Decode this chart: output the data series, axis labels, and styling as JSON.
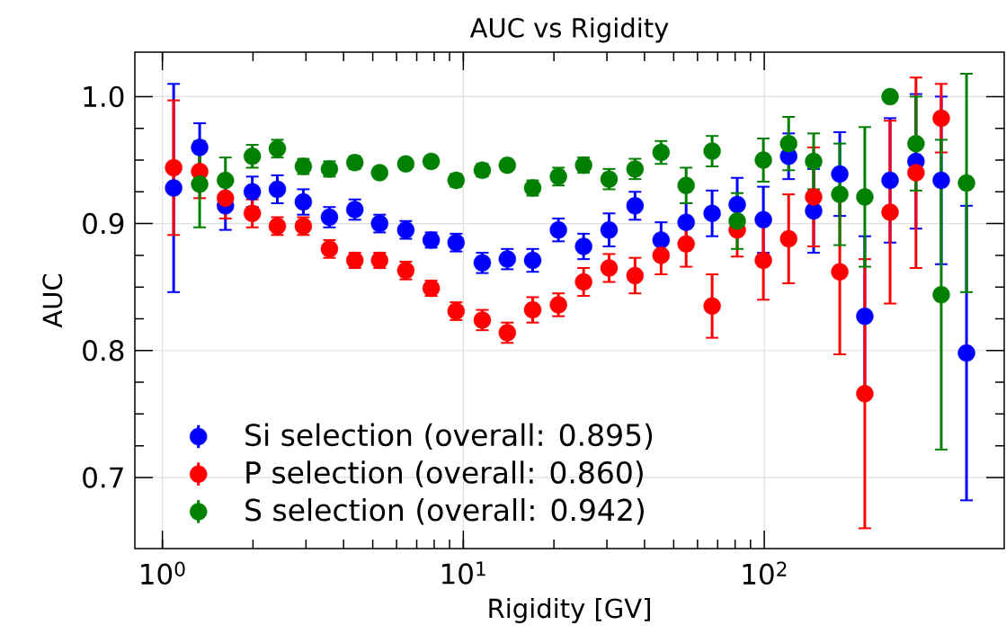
{
  "chart_data": {
    "type": "scatter",
    "title": "AUC vs Rigidity",
    "xlabel": "Rigidity [GV]",
    "ylabel": "AUC",
    "x": [
      1.09,
      1.33,
      1.62,
      1.99,
      2.41,
      2.94,
      3.59,
      4.36,
      5.27,
      6.44,
      7.82,
      9.46,
      11.56,
      14.0,
      17.0,
      20.7,
      25.1,
      30.5,
      37.2,
      45.4,
      55.0,
      67.1,
      81.3,
      99.3,
      120.5,
      145.9,
      178.2,
      215.8,
      261.8,
      319.2,
      387.3,
      469.9
    ],
    "series": [
      {
        "name": "Si selection (overall: 0.895)",
        "color": "#0000ff",
        "values": [
          0.928,
          0.96,
          0.914,
          0.925,
          0.927,
          0.917,
          0.905,
          0.911,
          0.9,
          0.895,
          0.887,
          0.885,
          0.869,
          0.872,
          0.871,
          0.895,
          0.882,
          0.895,
          0.914,
          0.887,
          0.901,
          0.908,
          0.915,
          0.903,
          0.953,
          0.91,
          0.939,
          0.827,
          0.934,
          0.949,
          0.934,
          0.798
        ],
        "errors": [
          0.082,
          0.019,
          0.019,
          0.012,
          0.011,
          0.01,
          0.008,
          0.008,
          0.007,
          0.007,
          0.006,
          0.007,
          0.008,
          0.008,
          0.009,
          0.009,
          0.01,
          0.013,
          0.011,
          0.014,
          0.015,
          0.018,
          0.021,
          0.026,
          0.018,
          0.033,
          0.033,
          0.063,
          0.049,
          0.053,
          0.066,
          0.116
        ]
      },
      {
        "name": "P selection (overall: 0.860)",
        "color": "#ff0000",
        "values": [
          0.944,
          0.941,
          0.92,
          0.908,
          0.898,
          0.898,
          0.88,
          0.871,
          0.871,
          0.863,
          0.849,
          0.831,
          0.824,
          0.814,
          0.832,
          0.836,
          0.854,
          0.865,
          0.859,
          0.875,
          0.884,
          0.835,
          0.895,
          0.871,
          0.888,
          0.921,
          0.862,
          0.766,
          0.909,
          0.94,
          0.983,
          null
        ],
        "errors": [
          0.053,
          0.021,
          0.016,
          0.011,
          0.007,
          0.007,
          0.007,
          0.006,
          0.006,
          0.007,
          0.006,
          0.007,
          0.008,
          0.008,
          0.01,
          0.009,
          0.011,
          0.011,
          0.014,
          0.015,
          0.018,
          0.025,
          0.021,
          0.031,
          0.035,
          0.039,
          0.065,
          0.106,
          0.072,
          0.075,
          0.027,
          null
        ]
      },
      {
        "name": "S selection (overall: 0.942)",
        "color": "#008000",
        "values": [
          null,
          0.931,
          0.934,
          0.953,
          0.959,
          0.945,
          0.943,
          0.948,
          0.94,
          0.947,
          0.949,
          0.934,
          0.942,
          0.946,
          0.928,
          0.937,
          0.946,
          0.935,
          0.943,
          0.956,
          0.93,
          0.957,
          0.902,
          0.95,
          0.963,
          0.949,
          0.923,
          0.921,
          1.0,
          0.963,
          0.844,
          0.932
        ],
        "errors": [
          null,
          0.034,
          0.018,
          0.009,
          0.007,
          0.006,
          0.006,
          0.005,
          0.004,
          0.004,
          0.004,
          0.005,
          0.005,
          0.004,
          0.006,
          0.007,
          0.006,
          0.008,
          0.008,
          0.009,
          0.014,
          0.012,
          0.022,
          0.017,
          0.021,
          0.022,
          0.04,
          0.055,
          null,
          0.037,
          0.122,
          0.086
        ]
      }
    ],
    "xlim": [
      0.81,
      627
    ],
    "ylim": [
      0.644,
      1.035
    ],
    "xticks": [
      {
        "value": 1,
        "label": "10$^{0}$"
      },
      {
        "value": 10,
        "label": "10$^{1}$"
      },
      {
        "value": 100,
        "label": "10$^{2}$"
      }
    ],
    "yticks": [
      {
        "value": 0.7,
        "label": "0.7"
      },
      {
        "value": 0.8,
        "label": "0.8"
      },
      {
        "value": 0.9,
        "label": "0.9"
      },
      {
        "value": 1.0,
        "label": "1.0"
      }
    ],
    "log": "x",
    "grid": true,
    "legend": "bottom left",
    "marker": "circle"
  }
}
